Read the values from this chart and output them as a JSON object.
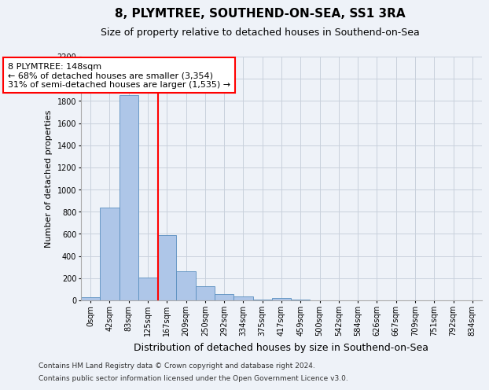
{
  "title1": "8, PLYMTREE, SOUTHEND-ON-SEA, SS1 3RA",
  "title2": "Size of property relative to detached houses in Southend-on-Sea",
  "xlabel": "Distribution of detached houses by size in Southend-on-Sea",
  "ylabel": "Number of detached properties",
  "bin_labels": [
    "0sqm",
    "42sqm",
    "83sqm",
    "125sqm",
    "167sqm",
    "209sqm",
    "250sqm",
    "292sqm",
    "334sqm",
    "375sqm",
    "417sqm",
    "459sqm",
    "500sqm",
    "542sqm",
    "584sqm",
    "626sqm",
    "667sqm",
    "709sqm",
    "751sqm",
    "792sqm",
    "834sqm"
  ],
  "bar_heights": [
    25,
    840,
    1850,
    205,
    590,
    260,
    130,
    55,
    35,
    5,
    20,
    5,
    0,
    0,
    0,
    0,
    0,
    0,
    0,
    0,
    0
  ],
  "bar_color": "#aec6e8",
  "bar_edge_color": "#5a8fc0",
  "vline_x": 3.55,
  "vline_color": "red",
  "annotation_line1": "8 PLYMTREE: 148sqm",
  "annotation_line2": "← 68% of detached houses are smaller (3,354)",
  "annotation_line3": "31% of semi-detached houses are larger (1,535) →",
  "annotation_box_color": "#ffffff",
  "annotation_box_edge": "red",
  "ylim_max": 2200,
  "yticks": [
    0,
    200,
    400,
    600,
    800,
    1000,
    1200,
    1400,
    1600,
    1800,
    2000,
    2200
  ],
  "grid_color": "#c8d0dc",
  "footer1": "Contains HM Land Registry data © Crown copyright and database right 2024.",
  "footer2": "Contains public sector information licensed under the Open Government Licence v3.0.",
  "bg_color": "#eef2f8",
  "title1_fontsize": 11,
  "title2_fontsize": 9,
  "ylabel_fontsize": 8,
  "xlabel_fontsize": 9,
  "tick_fontsize": 7,
  "annot_fontsize": 8
}
